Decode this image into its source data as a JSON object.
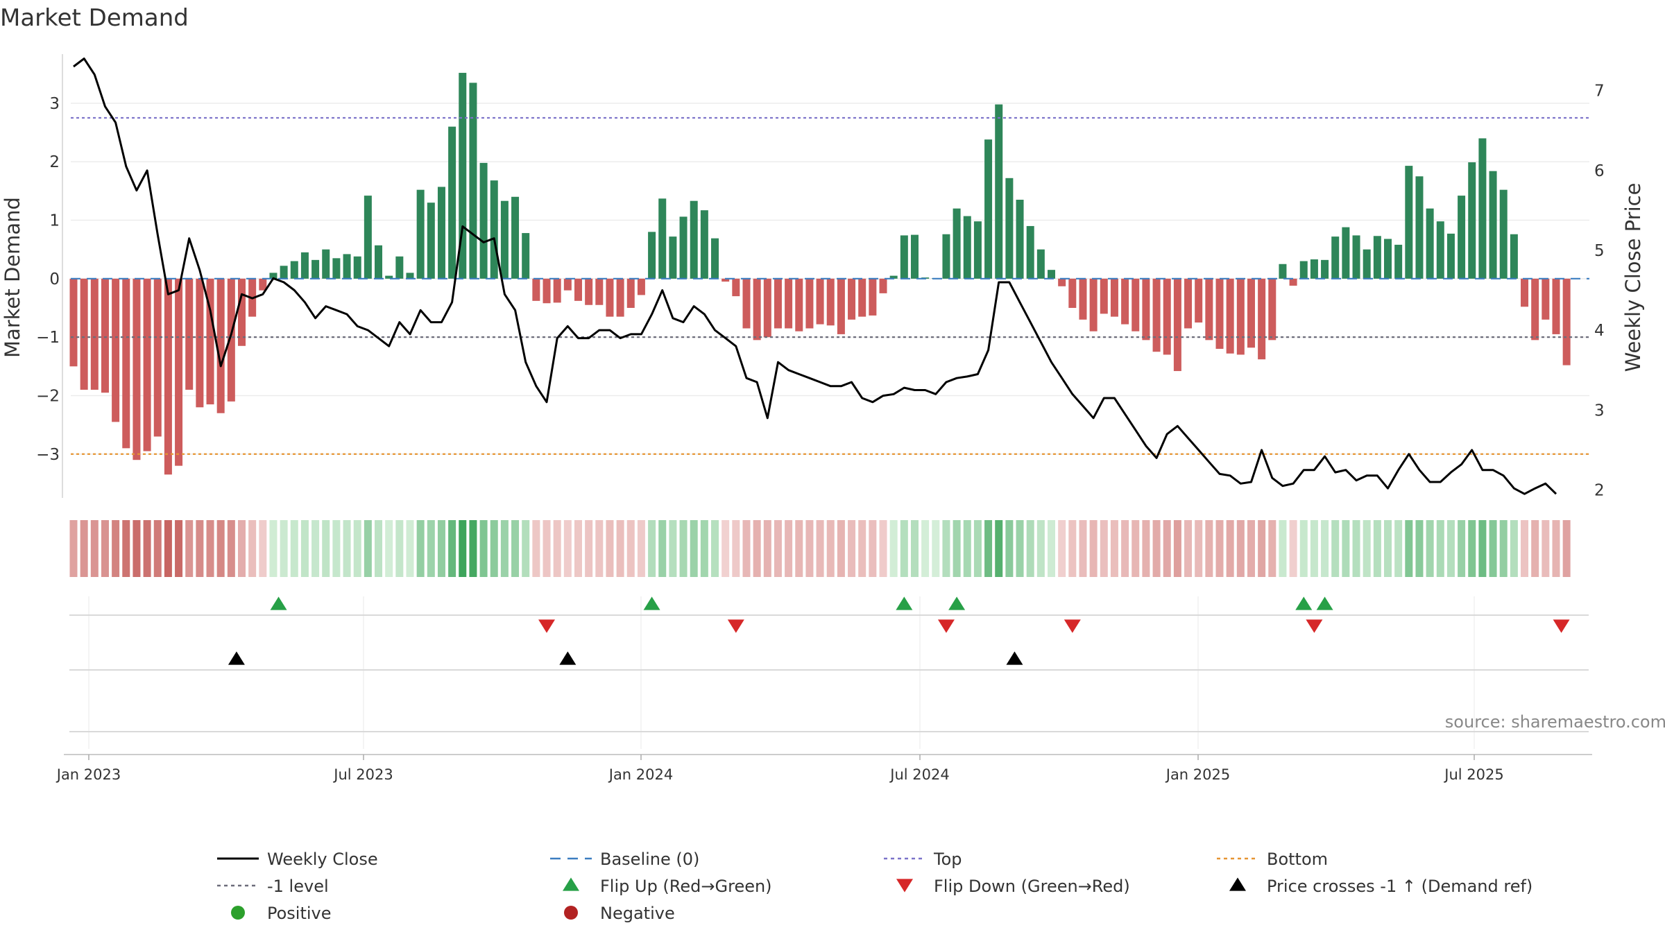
{
  "chart_data": {
    "type": "bar",
    "title": "Market Demand",
    "ylabel_left": "Market Demand",
    "ylabel_right": "Weekly Close Price",
    "ylim_left": [
      -3.75,
      3.9
    ],
    "ylim_right": [
      1.9,
      7.5
    ],
    "yticks_left": [
      {
        "v": 3,
        "label": "3"
      },
      {
        "v": 2,
        "label": "2"
      },
      {
        "v": 1,
        "label": "1"
      },
      {
        "v": 0,
        "label": "0"
      },
      {
        "v": -1,
        "label": "−1"
      },
      {
        "v": -2,
        "label": "−2"
      },
      {
        "v": -3,
        "label": "−3"
      }
    ],
    "yticks_right": [
      {
        "v": 7,
        "label": "7"
      },
      {
        "v": 6,
        "label": "6"
      },
      {
        "v": 5,
        "label": "5"
      },
      {
        "v": 4,
        "label": "4"
      },
      {
        "v": 3,
        "label": "3"
      },
      {
        "v": 2,
        "label": "2"
      }
    ],
    "reference_lines": {
      "baseline": 0,
      "minus_one": -1,
      "top": 2.75,
      "bottom": -3
    },
    "x_start_week": 0,
    "x_end_week": 146,
    "xticks": [
      {
        "week": 2,
        "label": "Jan 2023"
      },
      {
        "week": 28.2,
        "label": "Jul 2023"
      },
      {
        "week": 54.6,
        "label": "Jan 2024"
      },
      {
        "week": 80.8,
        "label": "Jul 2024"
      },
      {
        "week": 107.2,
        "label": "Jan 2025"
      },
      {
        "week": 133.2,
        "label": "Jul 2025"
      }
    ],
    "demand": [
      -1.5,
      -1.9,
      -1.9,
      -1.95,
      -2.45,
      -2.9,
      -3.1,
      -2.95,
      -2.7,
      -3.35,
      -3.2,
      -1.9,
      -2.2,
      -2.15,
      -2.3,
      -2.1,
      -1.15,
      -0.65,
      -0.2,
      0.1,
      0.22,
      0.3,
      0.45,
      0.32,
      0.5,
      0.35,
      0.42,
      0.38,
      1.42,
      0.57,
      0.05,
      0.38,
      0.1,
      1.52,
      1.3,
      1.57,
      2.6,
      3.52,
      3.35,
      1.98,
      1.68,
      1.33,
      1.4,
      0.78,
      -0.38,
      -0.42,
      -0.41,
      -0.2,
      -0.38,
      -0.45,
      -0.45,
      -0.65,
      -0.65,
      -0.5,
      -0.28,
      0.8,
      1.37,
      0.72,
      1.06,
      1.33,
      1.17,
      0.69,
      -0.05,
      -0.3,
      -0.85,
      -1.05,
      -1.0,
      -0.85,
      -0.85,
      -0.9,
      -0.85,
      -0.78,
      -0.8,
      -0.95,
      -0.7,
      -0.65,
      -0.63,
      -0.25,
      0.05,
      0.74,
      0.75,
      0.02,
      0.01,
      0.76,
      1.2,
      1.07,
      0.98,
      2.38,
      2.98,
      1.72,
      1.35,
      0.9,
      0.5,
      0.15,
      -0.13,
      -0.5,
      -0.7,
      -0.9,
      -0.6,
      -0.65,
      -0.78,
      -0.9,
      -1.05,
      -1.25,
      -1.3,
      -1.58,
      -0.85,
      -0.75,
      -1.05,
      -1.2,
      -1.28,
      -1.3,
      -1.18,
      -1.38,
      -1.05,
      0.25,
      -0.12,
      0.3,
      0.33,
      0.32,
      0.72,
      0.88,
      0.74,
      0.5,
      0.73,
      0.68,
      0.58,
      1.93,
      1.75,
      1.2,
      0.98,
      0.77,
      1.42,
      1.99,
      2.4,
      1.84,
      1.52,
      0.76,
      -0.48,
      -1.05,
      -0.7,
      -0.95,
      -1.48
    ],
    "weekly_close": [
      [
        0,
        7.3
      ],
      [
        1,
        7.4
      ],
      [
        2,
        7.2
      ],
      [
        3,
        6.8
      ],
      [
        4,
        6.6
      ],
      [
        5,
        6.05
      ],
      [
        6,
        5.75
      ],
      [
        7,
        6.0
      ],
      [
        8,
        5.2
      ],
      [
        9,
        4.45
      ],
      [
        10,
        4.5
      ],
      [
        11,
        5.15
      ],
      [
        12,
        4.75
      ],
      [
        13,
        4.25
      ],
      [
        14,
        3.55
      ],
      [
        15,
        3.95
      ],
      [
        16,
        4.45
      ],
      [
        17,
        4.4
      ],
      [
        18,
        4.45
      ],
      [
        19,
        4.65
      ],
      [
        20,
        4.6
      ],
      [
        21,
        4.5
      ],
      [
        22,
        4.35
      ],
      [
        23,
        4.15
      ],
      [
        24,
        4.3
      ],
      [
        25,
        4.25
      ],
      [
        26,
        4.2
      ],
      [
        27,
        4.05
      ],
      [
        28,
        4.0
      ],
      [
        29,
        3.9
      ],
      [
        30,
        3.8
      ],
      [
        31,
        4.1
      ],
      [
        32,
        3.95
      ],
      [
        33,
        4.25
      ],
      [
        34,
        4.1
      ],
      [
        35,
        4.1
      ],
      [
        36,
        4.35
      ],
      [
        37,
        5.3
      ],
      [
        38,
        5.2
      ],
      [
        39,
        5.1
      ],
      [
        40,
        5.15
      ],
      [
        41,
        4.45
      ],
      [
        42,
        4.25
      ],
      [
        43,
        3.6
      ],
      [
        44,
        3.3
      ],
      [
        45,
        3.1
      ],
      [
        46,
        3.9
      ],
      [
        47,
        4.05
      ],
      [
        48,
        3.9
      ],
      [
        49,
        3.9
      ],
      [
        50,
        4.0
      ],
      [
        51,
        4.0
      ],
      [
        52,
        3.9
      ],
      [
        53,
        3.95
      ],
      [
        54,
        3.95
      ],
      [
        55,
        4.2
      ],
      [
        56,
        4.5
      ],
      [
        57,
        4.15
      ],
      [
        58,
        4.1
      ],
      [
        59,
        4.3
      ],
      [
        60,
        4.2
      ],
      [
        61,
        4.0
      ],
      [
        62,
        3.9
      ],
      [
        63,
        3.8
      ],
      [
        64,
        3.4
      ],
      [
        65,
        3.35
      ],
      [
        66,
        2.9
      ],
      [
        67,
        3.6
      ],
      [
        68,
        3.5
      ],
      [
        69,
        3.45
      ],
      [
        70,
        3.4
      ],
      [
        71,
        3.35
      ],
      [
        72,
        3.3
      ],
      [
        73,
        3.3
      ],
      [
        74,
        3.35
      ],
      [
        75,
        3.15
      ],
      [
        76,
        3.1
      ],
      [
        77,
        3.18
      ],
      [
        78,
        3.2
      ],
      [
        79,
        3.28
      ],
      [
        80,
        3.25
      ],
      [
        81,
        3.25
      ],
      [
        82,
        3.2
      ],
      [
        83,
        3.35
      ],
      [
        84,
        3.4
      ],
      [
        85,
        3.42
      ],
      [
        86,
        3.45
      ],
      [
        87,
        3.75
      ],
      [
        88,
        4.6
      ],
      [
        89,
        4.6
      ],
      [
        90,
        4.35
      ],
      [
        91,
        4.1
      ],
      [
        92,
        3.85
      ],
      [
        93,
        3.6
      ],
      [
        94,
        3.4
      ],
      [
        95,
        3.2
      ],
      [
        96,
        3.05
      ],
      [
        97,
        2.9
      ],
      [
        98,
        3.15
      ],
      [
        99,
        3.15
      ],
      [
        100,
        2.95
      ],
      [
        101,
        2.75
      ],
      [
        102,
        2.55
      ],
      [
        103,
        2.4
      ],
      [
        104,
        2.7
      ],
      [
        105,
        2.8
      ],
      [
        106,
        2.65
      ],
      [
        107,
        2.5
      ],
      [
        108,
        2.35
      ],
      [
        109,
        2.2
      ],
      [
        110,
        2.18
      ],
      [
        111,
        2.08
      ],
      [
        112,
        2.1
      ],
      [
        113,
        2.5
      ],
      [
        114,
        2.15
      ],
      [
        115,
        2.05
      ],
      [
        116,
        2.08
      ],
      [
        117,
        2.25
      ],
      [
        118,
        2.25
      ],
      [
        119,
        2.42
      ],
      [
        120,
        2.22
      ],
      [
        121,
        2.25
      ],
      [
        122,
        2.12
      ],
      [
        123,
        2.18
      ],
      [
        124,
        2.18
      ],
      [
        125,
        2.02
      ],
      [
        126,
        2.25
      ],
      [
        127,
        2.45
      ],
      [
        128,
        2.25
      ],
      [
        129,
        2.1
      ],
      [
        130,
        2.1
      ],
      [
        131,
        2.22
      ],
      [
        132,
        2.32
      ],
      [
        133,
        2.5
      ],
      [
        134,
        2.25
      ],
      [
        135,
        2.25
      ],
      [
        136,
        2.18
      ],
      [
        137,
        2.02
      ],
      [
        138,
        1.95
      ],
      [
        139,
        2.02
      ],
      [
        140,
        2.08
      ],
      [
        141,
        1.95
      ]
    ],
    "flip_up_weeks": [
      19.5,
      55,
      79,
      84,
      117,
      119
    ],
    "flip_down_weeks": [
      45,
      63,
      83,
      95,
      118,
      141.5
    ],
    "price_cross_weeks": [
      15.5,
      47,
      89.5
    ],
    "colors": {
      "positive": "#2e8659",
      "negative": "#cd5c5c",
      "price_line": "#000000",
      "baseline": "#3b7dc0",
      "minus_one": "#6c6c7a",
      "top": "#7b72c9",
      "bottom": "#e69533",
      "flip_up": "#27a047",
      "flip_down": "#d62728",
      "cross": "#000000",
      "legend_positive": "#2ca02c",
      "legend_negative": "#b22222"
    },
    "source": "source: sharemaestro.com",
    "legend": [
      {
        "label": "Weekly Close",
        "kind": "line-solid",
        "color": "#000000"
      },
      {
        "label": "Baseline (0)",
        "kind": "line-dash",
        "color": "#3b7dc0"
      },
      {
        "label": "Top",
        "kind": "line-dot",
        "color": "#7b72c9"
      },
      {
        "label": "Bottom",
        "kind": "line-dot",
        "color": "#e69533"
      },
      {
        "label": "-1 level",
        "kind": "line-dot",
        "color": "#6c6c7a"
      },
      {
        "label": "Flip Up (Red→Green)",
        "kind": "tri-up",
        "color": "#27a047"
      },
      {
        "label": "Flip Down (Green→Red)",
        "kind": "tri-down",
        "color": "#d62728"
      },
      {
        "label": "Price crosses -1 ↑ (Demand ref)",
        "kind": "tri-up",
        "color": "#000000"
      },
      {
        "label": "Positive",
        "kind": "dot",
        "color": "#2ca02c"
      },
      {
        "label": "Negative",
        "kind": "dot",
        "color": "#b22222"
      }
    ]
  }
}
